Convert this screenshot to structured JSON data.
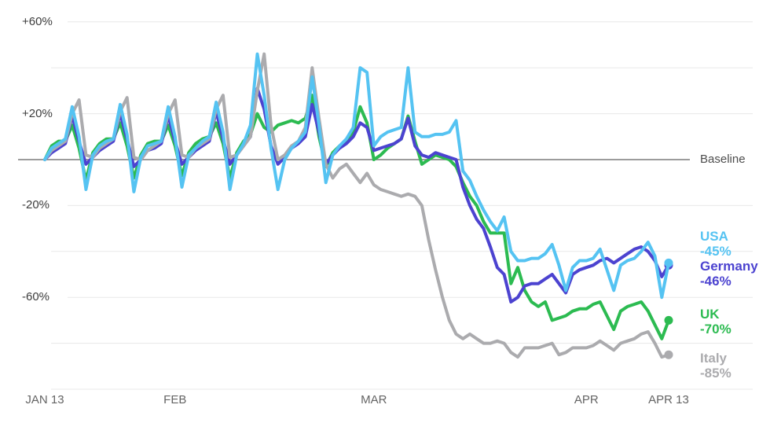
{
  "chart_data": {
    "type": "line",
    "grid": true,
    "legend_position": "right",
    "baseline_label": "Baseline",
    "x_axis": {
      "ticks": [
        {
          "label": "JAN 13",
          "day": 0
        },
        {
          "label": "FEB",
          "day": 19
        },
        {
          "label": "MAR",
          "day": 48
        },
        {
          "label": "APR",
          "day": 79
        },
        {
          "label": "APR 13",
          "day": 91
        }
      ],
      "range_days": [
        0,
        91
      ]
    },
    "y_axis": {
      "unit": "%",
      "range": [
        -100,
        60
      ],
      "baseline_value": 0,
      "gridline_values": [
        60,
        40,
        20,
        -20,
        -40,
        -60,
        -80,
        -100
      ],
      "ticks": [
        {
          "label": "+60%",
          "value": 60
        },
        {
          "label": "+20%",
          "value": 20
        },
        {
          "label": "-20%",
          "value": -20
        },
        {
          "label": "-60%",
          "value": -60
        }
      ]
    },
    "series": [
      {
        "name": "USA",
        "end_label": "-45%",
        "end_value": -45,
        "color": "#55C3F2",
        "values": [
          0,
          5,
          7,
          9,
          23,
          10,
          -13,
          2,
          6,
          8,
          9,
          24,
          11,
          -14,
          1,
          6,
          7,
          8,
          23,
          10,
          -12,
          2,
          5,
          8,
          10,
          25,
          12,
          -13,
          2,
          7,
          15,
          46,
          28,
          5,
          -13,
          0,
          5,
          8,
          12,
          36,
          15,
          -10,
          2,
          6,
          9,
          14,
          40,
          38,
          6,
          10,
          12,
          13,
          14,
          40,
          12,
          10,
          10,
          11,
          11,
          12,
          17,
          -5,
          -9,
          -16,
          -22,
          -27,
          -31,
          -25,
          -40,
          -44,
          -44,
          -43,
          -43,
          -41,
          -37,
          -46,
          -57,
          -47,
          -44,
          -44,
          -43,
          -39,
          -48,
          -57,
          -46,
          -44,
          -43,
          -40,
          -36,
          -42,
          -60,
          -45
        ]
      },
      {
        "name": "Germany",
        "end_label": "-46%",
        "end_value": -46,
        "color": "#4C43D0",
        "values": [
          0,
          3,
          5,
          7,
          19,
          8,
          -2,
          1,
          4,
          6,
          8,
          20,
          9,
          -3,
          0,
          4,
          5,
          7,
          19,
          8,
          -2,
          1,
          4,
          6,
          8,
          21,
          9,
          -2,
          2,
          6,
          10,
          31,
          22,
          6,
          -2,
          1,
          5,
          7,
          10,
          24,
          12,
          -2,
          2,
          5,
          7,
          10,
          16,
          14,
          4,
          5,
          6,
          7,
          9,
          18,
          6,
          2,
          1,
          3,
          2,
          1,
          0,
          -12,
          -20,
          -26,
          -30,
          -38,
          -47,
          -50,
          -62,
          -60,
          -55,
          -54,
          -54,
          -52,
          -50,
          -54,
          -58,
          -50,
          -48,
          -47,
          -46,
          -44,
          -43,
          -45,
          -43,
          -41,
          -39,
          -38,
          -40,
          -44,
          -51,
          -46
        ]
      },
      {
        "name": "UK",
        "end_label": "-70%",
        "end_value": -70,
        "color": "#2CBB51",
        "values": [
          0,
          6,
          8,
          8,
          15,
          5,
          -9,
          3,
          7,
          9,
          9,
          16,
          6,
          -8,
          2,
          7,
          8,
          8,
          15,
          6,
          -7,
          3,
          7,
          9,
          10,
          16,
          7,
          -8,
          3,
          8,
          11,
          20,
          14,
          12,
          15,
          16,
          17,
          16,
          18,
          28,
          10,
          -3,
          3,
          6,
          8,
          12,
          23,
          16,
          0,
          2,
          5,
          7,
          9,
          19,
          8,
          -2,
          0,
          2,
          1,
          0,
          -3,
          -10,
          -16,
          -20,
          -27,
          -32,
          -32,
          -32,
          -54,
          -47,
          -57,
          -62,
          -64,
          -62,
          -70,
          -69,
          -68,
          -66,
          -65,
          -65,
          -63,
          -62,
          -68,
          -74,
          -66,
          -64,
          -63,
          -62,
          -66,
          -72,
          -78,
          -70
        ]
      },
      {
        "name": "Italy",
        "end_label": "-85%",
        "end_value": -85,
        "color": "#ABABAE",
        "values": [
          0,
          4,
          6,
          8,
          20,
          26,
          2,
          1,
          5,
          7,
          9,
          21,
          27,
          1,
          0,
          4,
          6,
          8,
          20,
          26,
          2,
          1,
          5,
          7,
          9,
          22,
          28,
          1,
          2,
          6,
          10,
          30,
          46,
          15,
          0,
          2,
          6,
          8,
          14,
          40,
          18,
          -2,
          -8,
          -4,
          -2,
          -6,
          -10,
          -6,
          -11,
          -13,
          -14,
          -15,
          -16,
          -15,
          -16,
          -20,
          -35,
          -48,
          -60,
          -70,
          -76,
          -78,
          -76,
          -78,
          -80,
          -80,
          -79,
          -80,
          -84,
          -86,
          -82,
          -82,
          -82,
          -81,
          -80,
          -85,
          -84,
          -82,
          -82,
          -82,
          -81,
          -79,
          -81,
          -83,
          -80,
          -79,
          -78,
          -76,
          -75,
          -80,
          -86,
          -85
        ]
      }
    ],
    "style": {
      "gridline_color": "#e8e8e8",
      "baseline_color": "#7c7c7c",
      "y_label_color": "#3c3c3c",
      "x_label_color": "#646464",
      "background": "#ffffff"
    }
  }
}
